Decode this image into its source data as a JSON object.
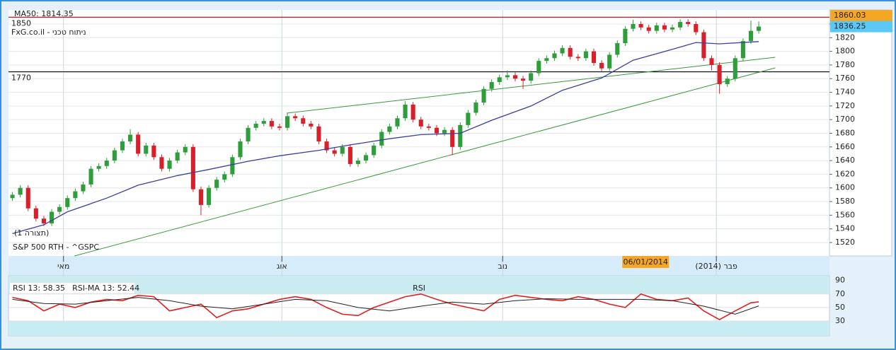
{
  "chart_data": [
    {
      "type": "candlestick",
      "watermark": "FxG.co.il - ניתוח טכני",
      "symbol": "S&P 500 RTH - ^GSPC",
      "pattern_label": "(תצורה 1)",
      "x": [
        0,
        1,
        2,
        3,
        4,
        5,
        6,
        7,
        8,
        9,
        10,
        11,
        12,
        13,
        14,
        15,
        16,
        17,
        18,
        19,
        20,
        21,
        22,
        23,
        24,
        25,
        26,
        27,
        28,
        29,
        30,
        31,
        32,
        33,
        34,
        35,
        36,
        37,
        38,
        39,
        40,
        41,
        42,
        43,
        44,
        45,
        46,
        47,
        48,
        49,
        50,
        51,
        52,
        53,
        54,
        55,
        56,
        57,
        58,
        59,
        60,
        61,
        62,
        63,
        64,
        65,
        66,
        67,
        68,
        69,
        70,
        71,
        72,
        73,
        74,
        75,
        76,
        77,
        78,
        79,
        80,
        81,
        82,
        83,
        84,
        85,
        86,
        87,
        88,
        89,
        90,
        91,
        92,
        93,
        94,
        95
      ],
      "open": [
        1585,
        1590,
        1600,
        1570,
        1555,
        1548,
        1565,
        1572,
        1585,
        1595,
        1605,
        1628,
        1632,
        1640,
        1655,
        1668,
        1678,
        1650,
        1662,
        1645,
        1628,
        1640,
        1652,
        1660,
        1598,
        1575,
        1600,
        1612,
        1620,
        1645,
        1668,
        1688,
        1694,
        1698,
        1690,
        1688,
        1705,
        1702,
        1694,
        1690,
        1668,
        1655,
        1650,
        1660,
        1635,
        1640,
        1648,
        1662,
        1682,
        1690,
        1702,
        1722,
        1700,
        1690,
        1688,
        1680,
        1685,
        1660,
        1692,
        1710,
        1725,
        1745,
        1755,
        1762,
        1765,
        1760,
        1757,
        1768,
        1786,
        1790,
        1797,
        1805,
        1792,
        1790,
        1800,
        1783,
        1775,
        1795,
        1812,
        1833,
        1840,
        1835,
        1830,
        1838,
        1832,
        1835,
        1843,
        1840,
        1828,
        1790,
        1780,
        1752,
        1760,
        1790,
        1815,
        1830
      ],
      "high": [
        1594,
        1604,
        1604,
        1574,
        1559,
        1569,
        1576,
        1589,
        1599,
        1609,
        1632,
        1636,
        1644,
        1659,
        1672,
        1686,
        1682,
        1666,
        1666,
        1649,
        1644,
        1656,
        1664,
        1664,
        1602,
        1604,
        1616,
        1624,
        1649,
        1672,
        1692,
        1698,
        1702,
        1702,
        1694,
        1710,
        1709,
        1706,
        1698,
        1694,
        1672,
        1659,
        1664,
        1664,
        1644,
        1652,
        1666,
        1686,
        1694,
        1706,
        1727,
        1726,
        1704,
        1694,
        1692,
        1689,
        1689,
        1696,
        1714,
        1729,
        1749,
        1759,
        1766,
        1772,
        1769,
        1764,
        1772,
        1790,
        1794,
        1801,
        1809,
        1809,
        1796,
        1804,
        1804,
        1787,
        1799,
        1816,
        1837,
        1846,
        1844,
        1839,
        1842,
        1842,
        1839,
        1847,
        1847,
        1844,
        1832,
        1794,
        1784,
        1764,
        1794,
        1819,
        1845,
        1844
      ],
      "low": [
        1581,
        1586,
        1566,
        1551,
        1544,
        1544,
        1561,
        1568,
        1581,
        1591,
        1601,
        1624,
        1628,
        1636,
        1651,
        1664,
        1646,
        1646,
        1641,
        1624,
        1624,
        1636,
        1648,
        1594,
        1560,
        1571,
        1596,
        1608,
        1616,
        1641,
        1664,
        1684,
        1690,
        1686,
        1684,
        1684,
        1698,
        1690,
        1686,
        1664,
        1651,
        1646,
        1646,
        1631,
        1631,
        1636,
        1644,
        1658,
        1678,
        1686,
        1698,
        1696,
        1686,
        1684,
        1676,
        1676,
        1648,
        1656,
        1688,
        1706,
        1721,
        1741,
        1751,
        1758,
        1756,
        1745,
        1753,
        1764,
        1782,
        1786,
        1793,
        1788,
        1786,
        1786,
        1779,
        1771,
        1771,
        1791,
        1808,
        1829,
        1831,
        1826,
        1826,
        1828,
        1828,
        1831,
        1836,
        1824,
        1786,
        1772,
        1738,
        1748,
        1756,
        1786,
        1811,
        1826
      ],
      "close": [
        1590,
        1600,
        1570,
        1555,
        1548,
        1565,
        1572,
        1585,
        1595,
        1605,
        1628,
        1632,
        1640,
        1655,
        1668,
        1678,
        1650,
        1662,
        1645,
        1628,
        1640,
        1652,
        1660,
        1598,
        1575,
        1600,
        1612,
        1620,
        1645,
        1668,
        1688,
        1694,
        1698,
        1690,
        1688,
        1705,
        1702,
        1694,
        1690,
        1668,
        1655,
        1650,
        1660,
        1635,
        1640,
        1648,
        1662,
        1682,
        1690,
        1702,
        1722,
        1700,
        1690,
        1688,
        1680,
        1685,
        1660,
        1692,
        1710,
        1725,
        1745,
        1755,
        1762,
        1765,
        1760,
        1757,
        1768,
        1786,
        1790,
        1797,
        1805,
        1792,
        1790,
        1800,
        1783,
        1775,
        1795,
        1812,
        1833,
        1840,
        1835,
        1830,
        1838,
        1832,
        1835,
        1843,
        1840,
        1828,
        1790,
        1780,
        1752,
        1760,
        1790,
        1815,
        1830,
        1836.25
      ],
      "up_color": "#2e9e3a",
      "down_color": "#d9202a",
      "series": [
        {
          "name": "MA50: 1814.35",
          "color": "#3b3f9c",
          "x": [
            0,
            4,
            7,
            12,
            16,
            21,
            25,
            30,
            34,
            39,
            43,
            48,
            52,
            57,
            61,
            66,
            70,
            75,
            79,
            84,
            87,
            90,
            95
          ],
          "values": [
            1533,
            1546,
            1565,
            1585,
            1604,
            1618,
            1627,
            1639,
            1647,
            1655,
            1663,
            1672,
            1678,
            1680,
            1699,
            1720,
            1743,
            1761,
            1787,
            1803,
            1813,
            1811,
            1814.35
          ]
        }
      ],
      "trendlines": [
        {
          "color": "#3a9a3a",
          "x": [
            7.9,
            97.1
          ],
          "values": [
            1500.3,
            1775.8
          ]
        },
        {
          "color": "#3a9a3a",
          "x": [
            34.9,
            97.1
          ],
          "values": [
            1709.5,
            1791.3
          ]
        }
      ],
      "hlines": [
        {
          "value": 1850,
          "color": "#c00000"
        },
        {
          "value": 1770,
          "color": "#000000"
        }
      ],
      "price_labels": [
        {
          "value": 1860.03,
          "color": "#f5a623"
        },
        {
          "value": 1836.25,
          "color": "#5bc8f5"
        }
      ],
      "cursor": {
        "x": 80.6,
        "label": "06/01/2014",
        "color": "#f5a623"
      },
      "xlim": [
        -0.5,
        104
      ],
      "ylim": [
        1500.3,
        1860.7
      ],
      "yticks": [
        1520,
        1540,
        1560,
        1580,
        1600,
        1620,
        1640,
        1660,
        1680,
        1700,
        1720,
        1740,
        1760,
        1780,
        1800,
        1820,
        1840
      ],
      "xticks": [
        {
          "value": 6.5,
          "label": "מאי"
        },
        {
          "value": 34.3,
          "label": "אוג"
        },
        {
          "value": 62.4,
          "label": "נוב"
        },
        {
          "value": 89.6,
          "label": "(2014) פבר"
        }
      ],
      "grid": true
    },
    {
      "type": "line",
      "title": "RSI",
      "series": [
        {
          "name": "RSI 13: 58.35",
          "color": "#e02020",
          "x": [
            0,
            2,
            4,
            6,
            8,
            10,
            12,
            14,
            16,
            18,
            20,
            22,
            24,
            26,
            28,
            30,
            32,
            34,
            36,
            38,
            40,
            42,
            44,
            46,
            48,
            50,
            52,
            54,
            56,
            58,
            60,
            62,
            64,
            66,
            68,
            70,
            72,
            74,
            76,
            78,
            80,
            82,
            84,
            86,
            88,
            90,
            92,
            94,
            95
          ],
          "values": [
            65,
            60,
            45,
            55,
            50,
            58,
            62,
            60,
            68,
            66,
            45,
            50,
            55,
            35,
            45,
            48,
            55,
            62,
            66,
            62,
            50,
            40,
            38,
            50,
            58,
            66,
            70,
            62,
            55,
            50,
            45,
            62,
            68,
            65,
            62,
            60,
            66,
            62,
            55,
            50,
            70,
            62,
            60,
            64,
            45,
            32,
            45,
            57,
            58.35
          ]
        },
        {
          "name": "RSI-MA 13: 52.44",
          "color": "#222222",
          "x": [
            0,
            4,
            8,
            12,
            16,
            20,
            24,
            28,
            32,
            36,
            40,
            44,
            48,
            52,
            56,
            60,
            64,
            68,
            72,
            76,
            80,
            84,
            88,
            92,
            95
          ],
          "values": [
            62,
            56,
            55,
            60,
            65,
            60,
            52,
            48,
            55,
            62,
            60,
            50,
            45,
            52,
            58,
            55,
            60,
            63,
            62,
            62,
            62,
            60,
            52,
            40,
            52.44
          ]
        }
      ],
      "levels": {
        "overbought": 70,
        "oversold": 30,
        "band_color": "#c8ecf2"
      },
      "xlim": [
        -0.5,
        104
      ],
      "ylim": [
        8,
        97
      ],
      "yticks": [
        30,
        50,
        70,
        90
      ],
      "grid": true
    }
  ]
}
